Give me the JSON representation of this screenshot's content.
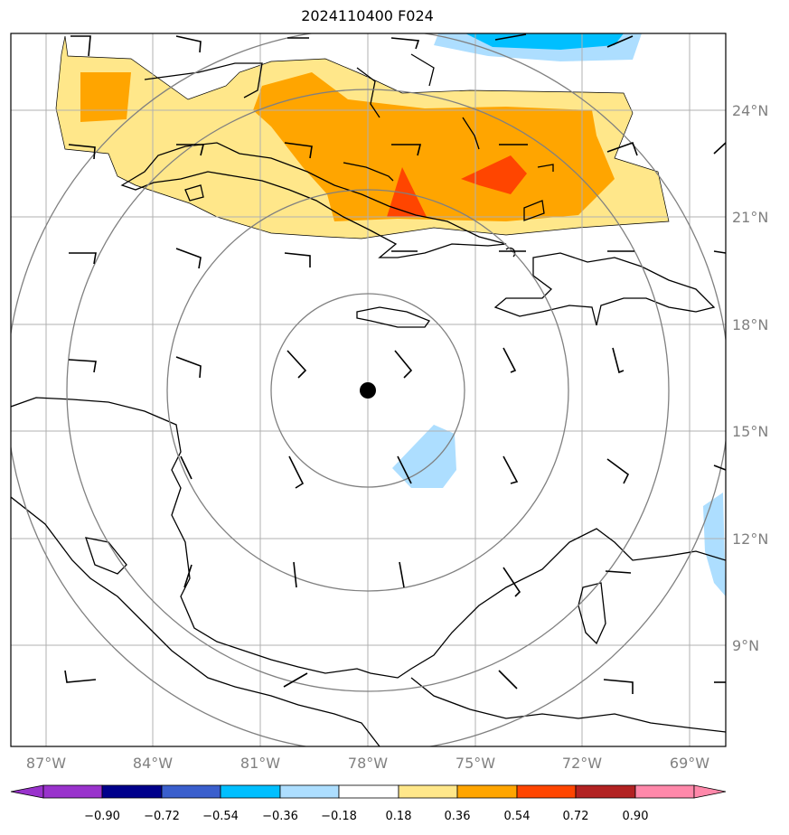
{
  "title": "2024110400 F024",
  "map": {
    "lon_range": [
      -88,
      -68
    ],
    "lat_range": [
      7,
      26
    ],
    "center": {
      "lon": -78,
      "lat": 16.2
    },
    "lon_ticks": [
      {
        "value": -87,
        "label": "87°W"
      },
      {
        "value": -84,
        "label": "84°W"
      },
      {
        "value": -81,
        "label": "81°W"
      },
      {
        "value": -78,
        "label": "78°W"
      },
      {
        "value": -75,
        "label": "75°W"
      },
      {
        "value": -72,
        "label": "72°W"
      },
      {
        "value": -69,
        "label": "69°W"
      }
    ],
    "lat_ticks": [
      {
        "value": 24,
        "label": "24°N"
      },
      {
        "value": 21,
        "label": "21°N"
      },
      {
        "value": 18,
        "label": "18°N"
      },
      {
        "value": 15,
        "label": "15°N"
      },
      {
        "value": 12,
        "label": "12°N"
      },
      {
        "value": 9,
        "label": "9°N"
      }
    ],
    "range_rings_deg": [
      2.7,
      5.6,
      8.4
    ]
  },
  "colorbar": {
    "levels": [
      "−0.90",
      "−0.72",
      "−0.54",
      "−0.36",
      "−0.18",
      "0.18",
      "0.36",
      "0.54",
      "0.72",
      "0.90"
    ],
    "colors": [
      "#9932CC",
      "#00008B",
      "#3A5FCD",
      "#00BFFF",
      "#ADDEFF",
      "#FFFFFF",
      "#FFE78A",
      "#FFA500",
      "#FF4500",
      "#B22222",
      "#FF88AA"
    ]
  },
  "colors": {
    "grid": "#B0B0B0",
    "coast": "#000000",
    "ring": "#808080",
    "positive_low": "#FFE78A",
    "positive_mid": "#FFA500",
    "positive_high": "#FF4500",
    "negative_low": "#ADDEFF",
    "negative_mid": "#00BFFF"
  }
}
